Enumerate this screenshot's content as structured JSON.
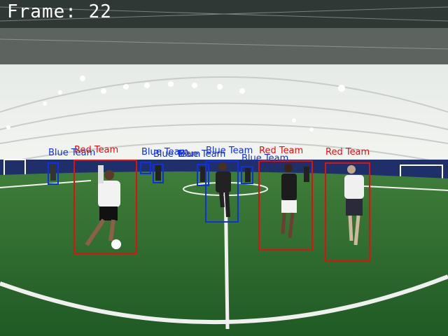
{
  "frame_text": "Frame: 22",
  "colors": {
    "red_team": "#e01010",
    "blue_team": "#1030e0",
    "turf": "#2a6e2e",
    "dome": "#e8ece8"
  },
  "detections": [
    {
      "team": "Blue Team",
      "color": "#1030e0"
    },
    {
      "team": "Red Team",
      "color": "#e01010"
    },
    {
      "team": "Blue Team",
      "color": "#1030e0"
    },
    {
      "team": "Blue Team",
      "color": "#1030e0"
    },
    {
      "team": "Blue Team",
      "color": "#1030e0"
    },
    {
      "team": "Blue Team",
      "color": "#1030e0"
    },
    {
      "team": "Blue Team",
      "color": "#1030e0"
    },
    {
      "team": "Red Team",
      "color": "#e01010"
    },
    {
      "team": "Red Team",
      "color": "#e01010"
    }
  ]
}
